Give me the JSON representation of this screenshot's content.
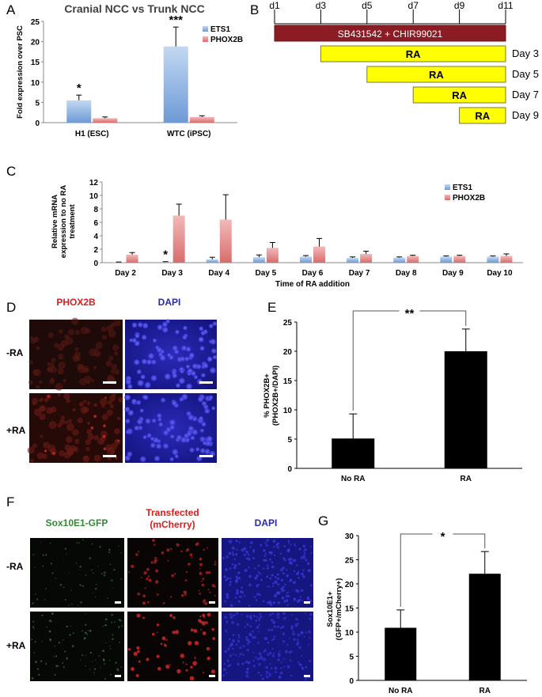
{
  "panels": {
    "A": "A",
    "B": "B",
    "C": "C",
    "D": "D",
    "E": "E",
    "F": "F",
    "G": "G"
  },
  "colors": {
    "ets1": "#8fb6e3",
    "phox2b": "#e48f8f",
    "sb_bar": "#8b1c24",
    "ra_bar": "#ffff00",
    "black": "#000000"
  },
  "chart_data": [
    {
      "id": "A",
      "type": "bar",
      "title": "Cranial NCC vs Trunk NCC",
      "ylabel": "Fold expression over PSC",
      "ylim": [
        0,
        25
      ],
      "yticks": [
        0,
        5,
        10,
        15,
        20,
        25
      ],
      "categories": [
        "H1 (ESC)",
        "WTC (iPSC)"
      ],
      "series": [
        {
          "name": "ETS1",
          "values": [
            5.5,
            18.8
          ],
          "errors": [
            1.3,
            4.8
          ]
        },
        {
          "name": "PHOX2B",
          "values": [
            1.1,
            1.4
          ],
          "errors": [
            0.3,
            0.3
          ]
        }
      ],
      "annotations": [
        "*",
        "***"
      ],
      "legend": "top-right"
    },
    {
      "id": "C",
      "type": "bar",
      "xlabel": "Time of RA addition",
      "ylabel": "Relative mRNA expression to no RA treatment",
      "ylim": [
        0,
        12
      ],
      "yticks": [
        0,
        2,
        4,
        6,
        8,
        10,
        12
      ],
      "categories": [
        "Day 2",
        "Day 3",
        "Day 4",
        "Day 5",
        "Day 6",
        "Day 7",
        "Day 8",
        "Day 9",
        "Day 10"
      ],
      "series": [
        {
          "name": "ETS1",
          "values": [
            0.05,
            0.1,
            0.5,
            0.8,
            0.9,
            0.7,
            0.75,
            0.9,
            0.9
          ],
          "errors": [
            0.05,
            0.05,
            0.3,
            0.35,
            0.15,
            0.15,
            0.1,
            0.1,
            0.1
          ]
        },
        {
          "name": "PHOX2B",
          "values": [
            1.2,
            7.0,
            6.4,
            2.2,
            2.4,
            1.3,
            1.0,
            1.0,
            1.0
          ],
          "errors": [
            0.3,
            1.7,
            3.7,
            0.8,
            1.2,
            0.4,
            0.1,
            0.1,
            0.3
          ]
        }
      ],
      "annotations": [
        "",
        "*",
        "",
        "",
        "",
        "",
        "",
        "",
        ""
      ],
      "legend": "top-right"
    },
    {
      "id": "E",
      "type": "bar",
      "ylabel": "% PHOX2B+ (PHOX2B+/DAPI)",
      "ylim": [
        0,
        25
      ],
      "yticks": [
        0,
        5,
        10,
        15,
        20,
        25
      ],
      "categories": [
        "No RA",
        "RA"
      ],
      "series": [
        {
          "name": "",
          "values": [
            5.1,
            20.0
          ],
          "errors": [
            4.2,
            3.8
          ]
        }
      ],
      "significance": "**"
    },
    {
      "id": "G",
      "type": "bar",
      "ylabel": "Sox10E1+ (GFP+/mCherry+)",
      "ylim": [
        0,
        30
      ],
      "yticks": [
        0,
        5,
        10,
        15,
        20,
        25,
        30
      ],
      "categories": [
        "No RA",
        "RA"
      ],
      "series": [
        {
          "name": "",
          "values": [
            10.9,
            22.1
          ],
          "errors": [
            3.7,
            4.6
          ]
        }
      ],
      "significance": "*"
    }
  ],
  "timeline": {
    "ticks": [
      "d1",
      "d3",
      "d5",
      "d7",
      "d9",
      "d11"
    ],
    "treatment": "SB431542 + CHIR99021",
    "ra_label": "RA",
    "rows": [
      {
        "start": "d3",
        "label": "Day 3"
      },
      {
        "start": "d5",
        "label": "Day 5"
      },
      {
        "start": "d7",
        "label": "Day 7"
      },
      {
        "start": "d9",
        "label": "Day 9"
      }
    ]
  },
  "panel_d": {
    "col1": "PHOX2B",
    "col2": "DAPI",
    "row1": "-RA",
    "row2": "+RA"
  },
  "panel_f": {
    "col1": "Sox10E1-GFP",
    "col2_line1": "Transfected",
    "col2_line2": "(mCherry)",
    "col3": "DAPI",
    "row1": "-RA",
    "row2": "+RA"
  }
}
